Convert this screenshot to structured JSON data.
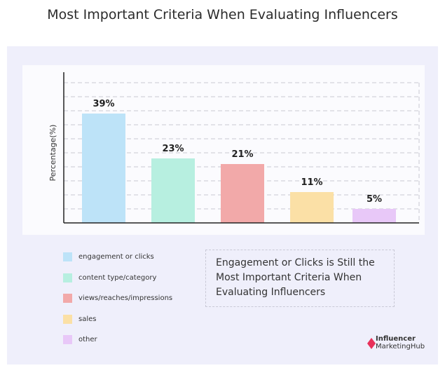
{
  "title": "Most Important Criteria When Evaluating Influencers",
  "chart_data": {
    "type": "bar",
    "categories": [
      "engagement or clicks",
      "content type/category",
      "views/reaches/impressions",
      "sales",
      "other"
    ],
    "values": [
      39,
      23,
      21,
      11,
      5
    ],
    "value_labels": [
      "39%",
      "23%",
      "21%",
      "11%",
      "5%"
    ],
    "colors": [
      "#bde3f8",
      "#b7efe0",
      "#f2a9a9",
      "#fbe0a6",
      "#e8c8f8"
    ],
    "ylabel": "Percentage(%)",
    "xlabel": "",
    "ylim": [
      0,
      50
    ],
    "grid": true,
    "legend": "bottom-left"
  },
  "note": "Engagement or Clicks is Still the Most Important Criteria When Evaluating Influencers",
  "logo": {
    "line1": "Influencer",
    "line2": "MarketingHub",
    "accent": "#e8305a"
  }
}
